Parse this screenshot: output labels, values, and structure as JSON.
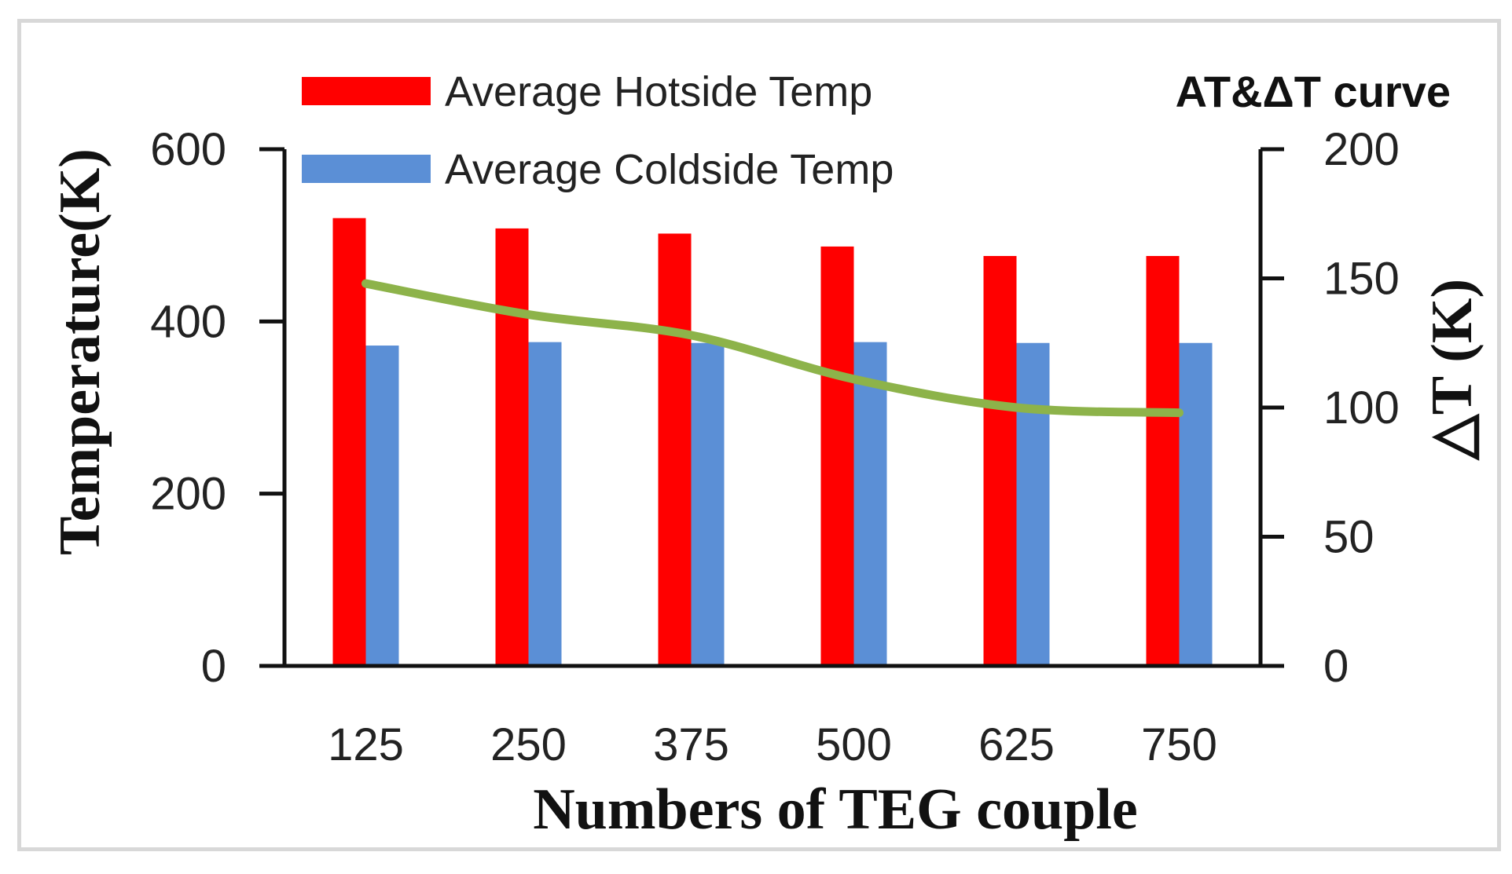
{
  "chart_data": {
    "type": "bar",
    "title": "AT&ΔT curve",
    "xlabel": "Numbers of TEG couple",
    "ylabel": "Temperature(K)",
    "y2label": "△T (K)",
    "categories": [
      "125",
      "250",
      "375",
      "500",
      "625",
      "750"
    ],
    "ylim": [
      0,
      600
    ],
    "y_ticks": [
      "0",
      "200",
      "400",
      "600"
    ],
    "y2lim": [
      0,
      200
    ],
    "y2_ticks": [
      "0",
      "50",
      "100",
      "150",
      "200"
    ],
    "legend_position": "top-left",
    "grid": false,
    "series": [
      {
        "name": "Average Hotside Temp",
        "type": "bar",
        "axis": "left",
        "color": "#ff0000",
        "values": [
          520,
          508,
          502,
          487,
          476,
          476
        ]
      },
      {
        "name": "Average Coldside Temp",
        "type": "bar",
        "axis": "left",
        "color": "#5b8fd6",
        "values": [
          372,
          376,
          375,
          376,
          375,
          375
        ]
      },
      {
        "name": "",
        "type": "line",
        "axis": "right",
        "color": "#8db34a",
        "values": [
          148,
          136,
          128,
          111,
          100,
          98
        ]
      }
    ]
  }
}
